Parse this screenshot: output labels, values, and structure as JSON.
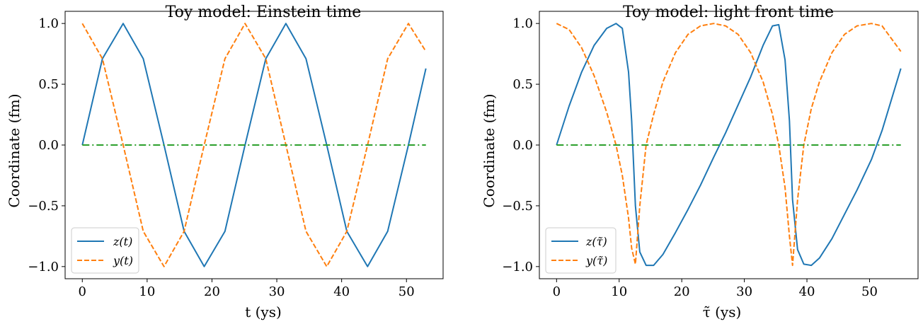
{
  "chart_data": [
    {
      "type": "line",
      "title": "Toy model: Einstein time",
      "xlabel": "t (ys)",
      "ylabel": "Coordinate (fm)",
      "xlim": [
        -2.65,
        55.65
      ],
      "ylim": [
        -1.1,
        1.1
      ],
      "xticks": [
        0,
        10,
        20,
        30,
        40,
        50
      ],
      "yticks": [
        -1.0,
        -0.5,
        0.0,
        0.5,
        1.0
      ],
      "ytick_labels": [
        "−1.0",
        "−0.5",
        "0.0",
        "0.5",
        "1.0"
      ],
      "grid": false,
      "legend_position": "lower-left",
      "x": [
        0,
        3.1,
        6.3,
        9.4,
        12.6,
        15.7,
        18.8,
        22.0,
        25.1,
        28.3,
        31.4,
        34.5,
        37.7,
        40.8,
        44.0,
        47.1,
        50.3,
        53.0
      ],
      "series": [
        {
          "name": "z(t)",
          "color": "#1f77b4",
          "style": "solid",
          "values": [
            0.0,
            0.71,
            1.0,
            0.71,
            0.0,
            -0.71,
            -1.0,
            -0.71,
            0.0,
            0.71,
            1.0,
            0.71,
            0.0,
            -0.71,
            -1.0,
            -0.71,
            0.0,
            0.63
          ]
        },
        {
          "name": "y(t)",
          "color": "#ff7f0e",
          "style": "dashed",
          "values": [
            1.0,
            0.71,
            0.0,
            -0.71,
            -1.0,
            -0.71,
            0.0,
            0.71,
            1.0,
            0.71,
            0.0,
            -0.71,
            -1.0,
            -0.71,
            0.0,
            0.71,
            1.0,
            0.77
          ]
        },
        {
          "name": "",
          "color": "#2ca02c",
          "style": "dashdot",
          "values": [
            0.0,
            0.0,
            0.0,
            0.0,
            0.0,
            0.0,
            0.0,
            0.0,
            0.0,
            0.0,
            0.0,
            0.0,
            0.0,
            0.0,
            0.0,
            0.0,
            0.0,
            0.0
          ]
        }
      ]
    },
    {
      "type": "line",
      "title": "Toy model: light front time",
      "xlabel": "τ̃ (ys)",
      "ylabel": "Coordinate (fm)",
      "xlim": [
        -2.75,
        57.75
      ],
      "ylim": [
        -1.1,
        1.1
      ],
      "xticks": [
        0,
        10,
        20,
        30,
        40,
        50
      ],
      "yticks": [
        -1.0,
        -0.5,
        0.0,
        0.5,
        1.0
      ],
      "ytick_labels": [
        "−1.0",
        "−0.5",
        "0.0",
        "0.5",
        "1.0"
      ],
      "grid": false,
      "legend_position": "lower-left",
      "x": [
        0,
        2.0,
        4.0,
        6.0,
        8.0,
        9.5,
        10.5,
        11.5,
        12.0,
        12.6,
        13.3,
        14.3,
        15.5,
        17.0,
        19.0,
        21.0,
        23.0,
        25.1,
        27.0,
        29.0,
        31.0,
        33.0,
        34.5,
        35.5,
        36.5,
        37.2,
        37.7,
        38.5,
        39.5,
        40.7,
        42.0,
        44.0,
        46.0,
        48.0,
        50.3,
        52.0,
        55.0
      ],
      "series": [
        {
          "name": "z(τ̃)",
          "color": "#1f77b4",
          "style": "solid",
          "values": [
            0.0,
            0.32,
            0.6,
            0.82,
            0.96,
            1.0,
            0.96,
            0.6,
            0.2,
            -0.5,
            -0.88,
            -0.99,
            -0.99,
            -0.9,
            -0.72,
            -0.53,
            -0.33,
            -0.1,
            0.1,
            0.33,
            0.56,
            0.82,
            0.98,
            0.99,
            0.7,
            0.2,
            -0.45,
            -0.86,
            -0.98,
            -0.99,
            -0.93,
            -0.77,
            -0.57,
            -0.37,
            -0.12,
            0.12,
            0.63
          ]
        },
        {
          "name": "y(τ̃)",
          "color": "#ff7f0e",
          "style": "dashed",
          "values": [
            1.0,
            0.95,
            0.8,
            0.57,
            0.27,
            0.0,
            -0.25,
            -0.6,
            -0.85,
            -0.98,
            -0.5,
            0.0,
            0.25,
            0.52,
            0.76,
            0.91,
            0.98,
            1.0,
            0.98,
            0.91,
            0.76,
            0.52,
            0.25,
            0.0,
            -0.35,
            -0.75,
            -0.99,
            -0.45,
            0.0,
            0.3,
            0.52,
            0.76,
            0.91,
            0.98,
            1.0,
            0.98,
            0.77
          ]
        },
        {
          "name": "",
          "color": "#2ca02c",
          "style": "dashdot",
          "values": [
            0,
            0,
            0,
            0,
            0,
            0,
            0,
            0,
            0,
            0,
            0,
            0,
            0,
            0,
            0,
            0,
            0,
            0,
            0,
            0,
            0,
            0,
            0,
            0,
            0,
            0,
            0,
            0,
            0,
            0,
            0,
            0,
            0,
            0,
            0,
            0,
            0
          ]
        }
      ]
    }
  ]
}
